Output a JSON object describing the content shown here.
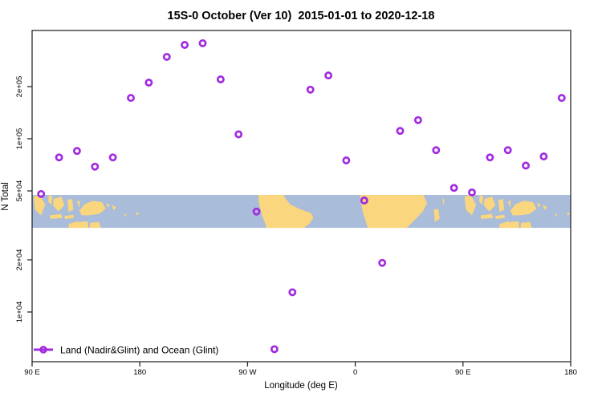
{
  "title": "15S-0 October (Ver 10)  2015-01-01 to 2020-12-18",
  "colors": {
    "point": "#A22BE0",
    "ocean": "#A9BCD9",
    "land": "#FAD67E",
    "axis": "#2B2B2B",
    "text": "#000000",
    "background": "#FFFFFF"
  },
  "legend": {
    "label": "Land (Nadir&Glint) and Ocean (Glint)",
    "marker": "open-circle-on-line"
  },
  "chart_data": {
    "type": "scatter",
    "title": "15S-0 October (Ver 10)  2015-01-01 to 2020-12-18",
    "xlabel": "Longitude (deg E)",
    "ylabel": "N Total",
    "grid": false,
    "legend_position": "bottom-left",
    "x_axis": {
      "min": 90,
      "max": 540,
      "ticks": [
        {
          "v": 90,
          "label": "90 E"
        },
        {
          "v": 180,
          "label": "180"
        },
        {
          "v": 270,
          "label": "90 W"
        },
        {
          "v": 360,
          "label": "0"
        },
        {
          "v": 450,
          "label": "90 E"
        },
        {
          "v": 540,
          "label": "180"
        }
      ]
    },
    "y_axis": {
      "scale": "log10",
      "log_min": 3.713,
      "log_max": 5.625,
      "ticks": [
        {
          "v": 10000,
          "label": "1e+04"
        },
        {
          "v": 20000,
          "label": "2e+04"
        },
        {
          "v": 50000,
          "label": "5e+04"
        },
        {
          "v": 100000,
          "label": "1e+05"
        },
        {
          "v": 200000,
          "label": "2e+05"
        }
      ]
    },
    "series": [
      {
        "name": "Land (Nadir&Glint) and Ocean (Glint)",
        "marker": "open-circle",
        "points": [
          [
            97.5,
            48000
          ],
          [
            112.5,
            78000
          ],
          [
            127.5,
            85000
          ],
          [
            142.5,
            69000
          ],
          [
            157.5,
            78000
          ],
          [
            172.5,
            172000
          ],
          [
            187.5,
            211000
          ],
          [
            202.5,
            297000
          ],
          [
            217.5,
            348000
          ],
          [
            232.5,
            356000
          ],
          [
            247.5,
            220000
          ],
          [
            262.5,
            106000
          ],
          [
            277.5,
            38000
          ],
          [
            292.5,
            6100
          ],
          [
            307.5,
            13000
          ],
          [
            322.5,
            192000
          ],
          [
            337.5,
            232000
          ],
          [
            352.5,
            75000
          ],
          [
            367.5,
            44000
          ],
          [
            382.5,
            19200
          ],
          [
            397.5,
            111000
          ],
          [
            412.5,
            128000
          ],
          [
            427.5,
            86000
          ],
          [
            442.5,
            52000
          ],
          [
            457.5,
            49000
          ],
          [
            472.5,
            78000
          ],
          [
            487.5,
            86000
          ],
          [
            502.5,
            70000
          ],
          [
            517.5,
            79000
          ],
          [
            532.5,
            172000
          ]
        ]
      }
    ]
  },
  "map": {
    "description": "world coastline raster strip for latitude band 15S-0",
    "band_top_value": 47400,
    "band_bottom_value": 30600,
    "island_cluster_offsets_deg": [
      0,
      360
    ],
    "island_cluster": [
      [
        [
          91.3,
          0.05
        ],
        [
          96.5,
          0.0
        ],
        [
          101,
          0.3
        ],
        [
          97.5,
          0.62
        ],
        [
          92.5,
          0.45
        ]
      ],
      [
        [
          104,
          0.0
        ],
        [
          107,
          0.05
        ],
        [
          106,
          0.3
        ],
        [
          103.5,
          0.2
        ]
      ],
      [
        [
          108,
          0.12
        ],
        [
          114.5,
          0.05
        ],
        [
          117,
          0.32
        ],
        [
          112,
          0.5
        ],
        [
          107.5,
          0.33
        ]
      ],
      [
        [
          119.5,
          0.15
        ],
        [
          123.5,
          0.12
        ],
        [
          124.5,
          0.45
        ],
        [
          120.5,
          0.52
        ]
      ],
      [
        [
          127.5,
          0.2
        ],
        [
          130,
          0.17
        ],
        [
          129.5,
          0.4
        ]
      ],
      [
        [
          104.5,
          0.62
        ],
        [
          114,
          0.58
        ],
        [
          115.5,
          0.7
        ],
        [
          105.5,
          0.73
        ]
      ],
      [
        [
          117,
          0.64
        ],
        [
          124.5,
          0.6
        ],
        [
          125,
          0.7
        ],
        [
          117.5,
          0.73
        ]
      ],
      [
        [
          129.5,
          0.48
        ],
        [
          134,
          0.28
        ],
        [
          141,
          0.18
        ],
        [
          148.5,
          0.22
        ],
        [
          151.5,
          0.42
        ],
        [
          146,
          0.58
        ],
        [
          137,
          0.62
        ],
        [
          131.5,
          0.62
        ]
      ],
      [
        [
          152,
          0.25
        ],
        [
          155,
          0.3
        ],
        [
          153,
          0.38
        ]
      ],
      [
        [
          156.5,
          0.3
        ],
        [
          160.5,
          0.38
        ],
        [
          158,
          0.46
        ]
      ],
      [
        [
          167.5,
          0.55
        ],
        [
          169,
          0.62
        ],
        [
          167,
          0.65
        ]
      ],
      [
        [
          177,
          0.52
        ],
        [
          179.5,
          0.56
        ],
        [
          177.5,
          0.63
        ]
      ],
      [
        [
          120.5,
          0.88
        ],
        [
          128,
          0.8
        ],
        [
          131,
          0.9
        ],
        [
          131,
          1.0
        ],
        [
          120.5,
          1.0
        ]
      ],
      [
        [
          129.5,
          0.82
        ],
        [
          136.5,
          0.8
        ],
        [
          137,
          1.0
        ],
        [
          130,
          1.0
        ]
      ],
      [
        [
          138.5,
          0.85
        ],
        [
          146,
          0.82
        ],
        [
          147.5,
          1.0
        ],
        [
          138,
          1.0
        ]
      ]
    ],
    "continents": [
      [
        [
          279,
          0.0
        ],
        [
          300,
          0.0
        ],
        [
          302,
          0.12
        ],
        [
          306,
          0.3
        ],
        [
          315,
          0.45
        ],
        [
          323,
          0.55
        ],
        [
          325,
          0.7
        ],
        [
          321.5,
          0.88
        ],
        [
          317,
          1.0
        ],
        [
          286,
          1.0
        ],
        [
          282,
          0.6
        ],
        [
          279.5,
          0.25
        ]
      ],
      [
        [
          364,
          0.0
        ],
        [
          417,
          0.0
        ],
        [
          420,
          0.25
        ],
        [
          416.5,
          0.5
        ],
        [
          410,
          0.75
        ],
        [
          403,
          1.0
        ],
        [
          370.5,
          1.0
        ],
        [
          366.5,
          0.55
        ],
        [
          364.5,
          0.2
        ]
      ],
      [
        [
          425.5,
          0.45
        ],
        [
          429.5,
          0.42
        ],
        [
          430.5,
          0.72
        ],
        [
          426.5,
          0.82
        ]
      ],
      [
        [
          433,
          0.08
        ],
        [
          434.5,
          0.15
        ],
        [
          433.5,
          0.32
        ]
      ]
    ]
  }
}
